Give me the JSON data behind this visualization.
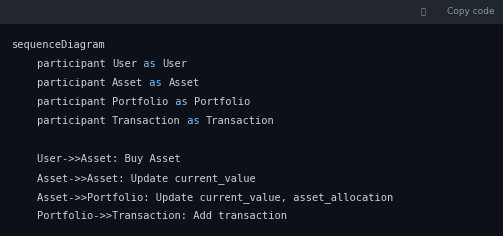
{
  "outer_bg": "#2d333b",
  "header_bg": "#22272e",
  "code_bg": "#0d1117",
  "header_text": "Copy code",
  "header_text_color": "#8b949e",
  "keyword_color": "#79c0ff",
  "text_color": "#c9d1d9",
  "font_family": "monospace",
  "font_size": 7.5,
  "fig_width": 5.03,
  "fig_height": 2.36,
  "dpi": 100,
  "line_segments": [
    [
      {
        "t": "sequenceDiagram",
        "color": "#c9d1d9"
      }
    ],
    [
      {
        "t": "    participant ",
        "color": "#c9d1d9"
      },
      {
        "t": "User",
        "color": "#c9d1d9"
      },
      {
        "t": " as ",
        "color": "#79c0ff"
      },
      {
        "t": "User",
        "color": "#c9d1d9"
      }
    ],
    [
      {
        "t": "    participant ",
        "color": "#c9d1d9"
      },
      {
        "t": "Asset",
        "color": "#c9d1d9"
      },
      {
        "t": " as ",
        "color": "#79c0ff"
      },
      {
        "t": "Asset",
        "color": "#c9d1d9"
      }
    ],
    [
      {
        "t": "    participant ",
        "color": "#c9d1d9"
      },
      {
        "t": "Portfolio",
        "color": "#c9d1d9"
      },
      {
        "t": " as ",
        "color": "#79c0ff"
      },
      {
        "t": "Portfolio",
        "color": "#c9d1d9"
      }
    ],
    [
      {
        "t": "    participant ",
        "color": "#c9d1d9"
      },
      {
        "t": "Transaction",
        "color": "#c9d1d9"
      },
      {
        "t": " as ",
        "color": "#79c0ff"
      },
      {
        "t": "Transaction",
        "color": "#c9d1d9"
      }
    ],
    [],
    [
      {
        "t": "    User->>Asset: Buy Asset",
        "color": "#c9d1d9"
      }
    ],
    [
      {
        "t": "    Asset->>Asset: Update current_value",
        "color": "#c9d1d9"
      }
    ],
    [
      {
        "t": "    Asset->>Portfolio: Update current_value, asset_allocation",
        "color": "#c9d1d9"
      }
    ],
    [
      {
        "t": "    Portfolio->>Transaction: Add transaction",
        "color": "#c9d1d9"
      }
    ]
  ]
}
